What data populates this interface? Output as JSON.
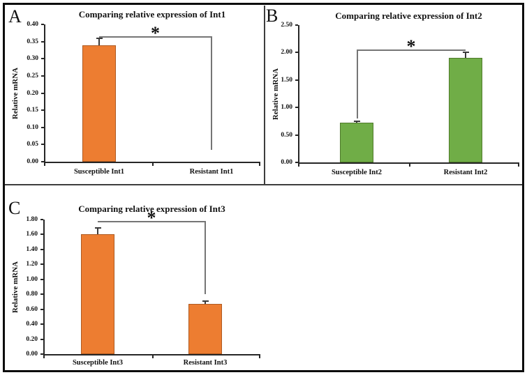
{
  "figure": {
    "background": "#ffffff",
    "border_color": "#0d0d0d",
    "divider_color": "#3d3d3d"
  },
  "chart_data": [
    {
      "type": "bar",
      "panel": "A",
      "title": "Comparing relative expression of Int1",
      "ylabel": "Relative mRNA",
      "xlabel": "",
      "categories": [
        "Susceptible Int1",
        "Resistant Int1"
      ],
      "values": [
        0.34,
        0.0
      ],
      "errors": [
        0.02,
        0.0
      ],
      "ylim": [
        0,
        0.4
      ],
      "ytick_step": 0.05,
      "ytick_decimals": 2,
      "grid": false,
      "legend": "none",
      "bar_fill": "#ED7D31",
      "bar_stroke": "#AE5A21",
      "significance": {
        "label": "*",
        "top": 0.365,
        "drop_left": null,
        "drop_right": 0.035
      }
    },
    {
      "type": "bar",
      "panel": "B",
      "title": "Comparing relative expression of Int2",
      "ylabel": "Relative mRNA",
      "xlabel": "",
      "categories": [
        "Susceptible Int2",
        "Resistant Int2"
      ],
      "values": [
        0.72,
        1.9
      ],
      "errors": [
        0.03,
        0.1
      ],
      "ylim": [
        0,
        2.5
      ],
      "ytick_step": 0.5,
      "ytick_decimals": 2,
      "grid": false,
      "legend": "none",
      "bar_fill": "#70AD47",
      "bar_stroke": "#4F7A2B",
      "significance": {
        "label": "*",
        "top": 2.05,
        "drop_left": 0.8,
        "drop_right": null
      }
    },
    {
      "type": "bar",
      "panel": "C",
      "title": "Comparing relative expression of Int3",
      "ylabel": "Relative mRNA",
      "xlabel": "",
      "categories": [
        "Susceptible Int3",
        "Resistant Int3"
      ],
      "values": [
        1.6,
        0.67
      ],
      "errors": [
        0.09,
        0.04
      ],
      "ylim": [
        0,
        1.8
      ],
      "ytick_step": 0.2,
      "ytick_decimals": 2,
      "grid": false,
      "legend": "none",
      "bar_fill": "#ED7D31",
      "bar_stroke": "#AE5A21",
      "significance": {
        "label": "*",
        "top": 1.78,
        "drop_left": null,
        "drop_right": 0.8
      }
    }
  ]
}
